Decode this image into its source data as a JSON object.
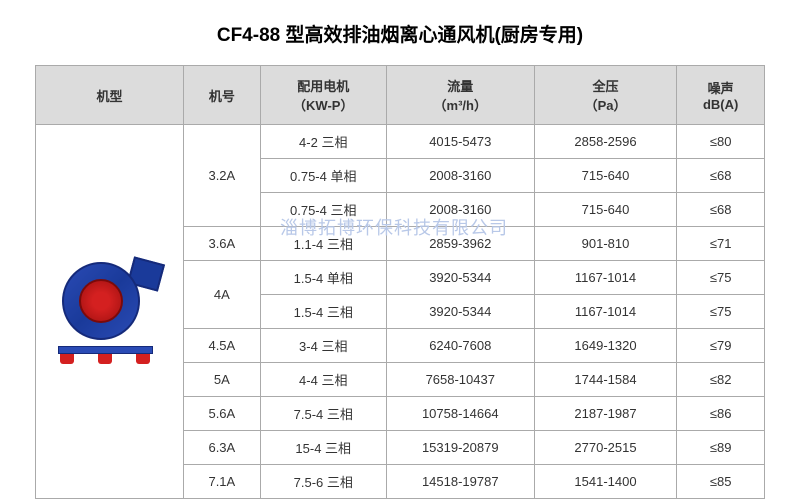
{
  "title": "CF4-88 型高效排油烟离心通风机(厨房专用)",
  "watermark": "淄博拓博环保科技有限公司",
  "headers": {
    "model": "机型",
    "no": "机号",
    "motor_line1": "配用电机",
    "motor_line2": "（KW-P）",
    "flow_line1": "流量",
    "flow_line2": "（m³/h）",
    "pressure_line1": "全压",
    "pressure_line2": "（Pa）",
    "noise_line1": "噪声",
    "noise_line2": "dB(A)"
  },
  "rows": [
    {
      "no": "3.2A",
      "no_rowspan": 3,
      "motor": "4-2 三相",
      "flow": "4015-5473",
      "pressure": "2858-2596",
      "noise": "≤80"
    },
    {
      "motor": "0.75-4 单相",
      "flow": "2008-3160",
      "pressure": "715-640",
      "noise": "≤68"
    },
    {
      "motor": "0.75-4 三相",
      "flow": "2008-3160",
      "pressure": "715-640",
      "noise": "≤68"
    },
    {
      "no": "3.6A",
      "no_rowspan": 1,
      "motor": "1.1-4 三相",
      "flow": "2859-3962",
      "pressure": "901-810",
      "noise": "≤71"
    },
    {
      "no": "4A",
      "no_rowspan": 2,
      "motor": "1.5-4 单相",
      "flow": "3920-5344",
      "pressure": "1167-1014",
      "noise": "≤75"
    },
    {
      "motor": "1.5-4 三相",
      "flow": "3920-5344",
      "pressure": "1167-1014",
      "noise": "≤75"
    },
    {
      "no": "4.5A",
      "no_rowspan": 1,
      "motor": "3-4 三相",
      "flow": "6240-7608",
      "pressure": "1649-1320",
      "noise": "≤79"
    },
    {
      "no": "5A",
      "no_rowspan": 1,
      "motor": "4-4 三相",
      "flow": "7658-10437",
      "pressure": "1744-1584",
      "noise": "≤82"
    },
    {
      "no": "5.6A",
      "no_rowspan": 1,
      "motor": "7.5-4 三相",
      "flow": "10758-14664",
      "pressure": "2187-1987",
      "noise": "≤86"
    },
    {
      "no": "6.3A",
      "no_rowspan": 1,
      "motor": "15-4 三相",
      "flow": "15319-20879",
      "pressure": "2770-2515",
      "noise": "≤89"
    },
    {
      "no": "7.1A",
      "no_rowspan": 1,
      "motor": "7.5-6 三相",
      "flow": "14518-19787",
      "pressure": "1541-1400",
      "noise": "≤85"
    }
  ]
}
